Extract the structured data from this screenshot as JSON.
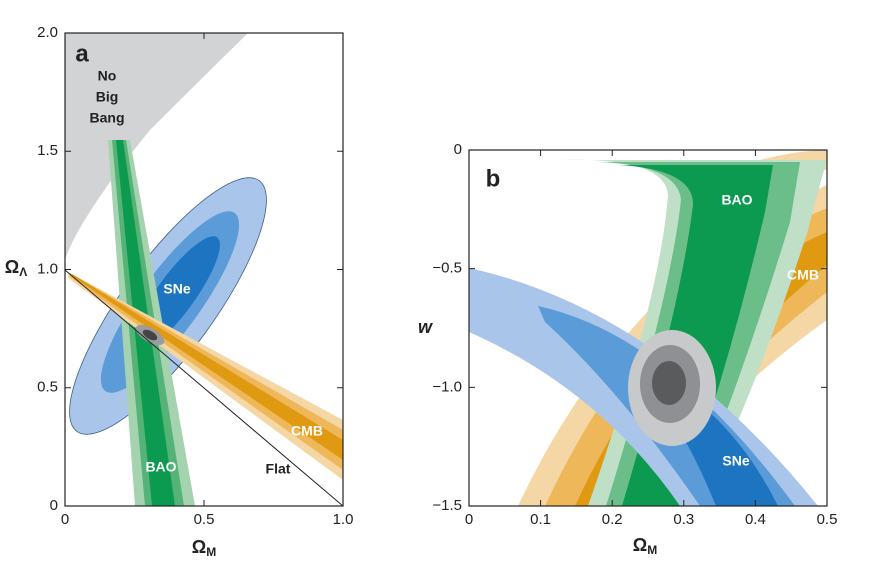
{
  "chart_data": [
    {
      "type": "contour",
      "panel_label": "a",
      "x_label": "Ω",
      "x_label_sub": "M",
      "y_label": "Ω",
      "y_label_sub": "Λ",
      "xlim": [
        0,
        1
      ],
      "xticks": [
        0,
        0.5,
        {
          "value": 1,
          "label": "1.0"
        }
      ],
      "ylim": [
        0,
        2
      ],
      "yticks": [
        0,
        0.5,
        {
          "value": 1,
          "label": "1.0"
        },
        1.5,
        {
          "value": 2,
          "label": "2.0"
        }
      ],
      "annotations": [
        "No",
        "Big",
        "Bang",
        "SNe",
        "CMB",
        "BAO",
        "Flat"
      ]
    },
    {
      "type": "contour",
      "panel_label": "b",
      "x_label": "Ω",
      "x_label_sub": "M",
      "y_label": "w",
      "xlim": [
        0,
        0.5
      ],
      "xticks": [
        0,
        0.1,
        0.2,
        0.3,
        0.4,
        0.5
      ],
      "ylim": [
        -1.5,
        0
      ],
      "yticks": [
        {
          "value": -1.5,
          "label": "−1.5"
        },
        {
          "value": -1,
          "label": "−1.0"
        },
        {
          "value": -0.5,
          "label": "−0.5"
        },
        0
      ],
      "annotations": [
        "BAO",
        "CMB",
        "SNe"
      ]
    }
  ]
}
